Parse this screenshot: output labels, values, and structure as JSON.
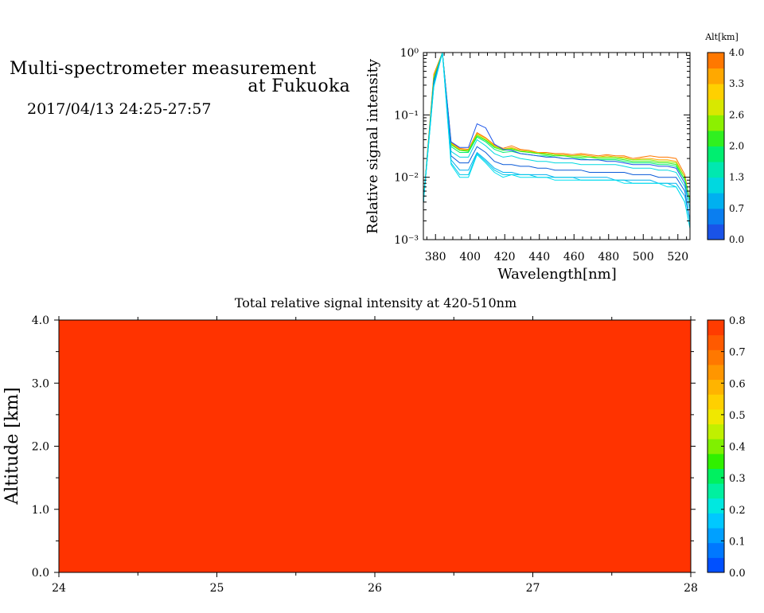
{
  "header": {
    "title_line1": "Multi-spectrometer measurement",
    "title_line2": "at Fukuoka",
    "timestamp": "2017/04/13 24:25-27:57"
  },
  "colors": {
    "fill_red": "#ff3300",
    "altitude_palette": [
      "#1a53e8",
      "#0a7ef0",
      "#00b0f0",
      "#00d8e0",
      "#00e8b0",
      "#00ee70",
      "#30f020",
      "#8cf000",
      "#d8e800",
      "#ffd000",
      "#ffa800",
      "#ff7800"
    ],
    "intensity_palette": [
      "#0050ff",
      "#0078ff",
      "#00a0ff",
      "#00c8ff",
      "#00e8e0",
      "#00f0a0",
      "#00f060",
      "#30f000",
      "#80f000",
      "#c0f000",
      "#f0e800",
      "#ffd000",
      "#ffb400",
      "#ff9600",
      "#ff7800",
      "#ff5a00",
      "#ff3c00"
    ]
  },
  "chart_data": [
    {
      "type": "line",
      "xlabel": "Wavelength[nm]",
      "ylabel": "Relative signal intensity",
      "yscale": "log",
      "xlim": [
        373,
        527
      ],
      "ylim": [
        0.001,
        1
      ],
      "x_ticks": [
        380,
        400,
        420,
        440,
        460,
        480,
        500,
        520
      ],
      "y_ticks": [
        {
          "value": 1,
          "label": "10⁰"
        },
        {
          "value": 0.1,
          "label": "10⁻¹"
        },
        {
          "value": 0.01,
          "label": "10⁻²"
        },
        {
          "value": 0.001,
          "label": "10⁻³"
        }
      ],
      "x": [
        373,
        379,
        384,
        389,
        394,
        399,
        404,
        409,
        414,
        419,
        424,
        429,
        434,
        439,
        444,
        449,
        454,
        459,
        464,
        469,
        474,
        479,
        484,
        489,
        494,
        499,
        504,
        509,
        514,
        519,
        524,
        527
      ],
      "series": [
        {
          "color": "#ff7800",
          "values": [
            0.004,
            0.45,
            1,
            0.036,
            0.029,
            0.028,
            0.052,
            0.043,
            0.033,
            0.029,
            0.032,
            0.028,
            0.027,
            0.025,
            0.025,
            0.024,
            0.024,
            0.023,
            0.024,
            0.023,
            0.022,
            0.023,
            0.022,
            0.022,
            0.02,
            0.021,
            0.022,
            0.021,
            0.021,
            0.02,
            0.011,
            0.004
          ]
        },
        {
          "color": "#ffa800",
          "values": [
            0.004,
            0.42,
            1,
            0.035,
            0.028,
            0.027,
            0.05,
            0.042,
            0.032,
            0.028,
            0.03,
            0.027,
            0.026,
            0.025,
            0.024,
            0.023,
            0.023,
            0.022,
            0.023,
            0.022,
            0.021,
            0.022,
            0.021,
            0.021,
            0.019,
            0.02,
            0.02,
            0.019,
            0.019,
            0.018,
            0.01,
            0.004
          ]
        },
        {
          "color": "#8cf000",
          "values": [
            0.004,
            0.4,
            1,
            0.034,
            0.027,
            0.027,
            0.048,
            0.04,
            0.031,
            0.028,
            0.029,
            0.026,
            0.026,
            0.024,
            0.024,
            0.023,
            0.022,
            0.022,
            0.022,
            0.021,
            0.021,
            0.021,
            0.021,
            0.02,
            0.019,
            0.019,
            0.019,
            0.018,
            0.018,
            0.017,
            0.01,
            0.004
          ]
        },
        {
          "color": "#30f020",
          "values": [
            0.004,
            0.38,
            1,
            0.033,
            0.027,
            0.026,
            0.046,
            0.039,
            0.03,
            0.027,
            0.028,
            0.026,
            0.025,
            0.024,
            0.023,
            0.022,
            0.022,
            0.021,
            0.021,
            0.021,
            0.02,
            0.02,
            0.02,
            0.019,
            0.018,
            0.018,
            0.018,
            0.017,
            0.017,
            0.016,
            0.009,
            0.004
          ]
        },
        {
          "color": "#00ee70",
          "values": [
            0.004,
            0.36,
            1,
            0.031,
            0.025,
            0.025,
            0.044,
            0.037,
            0.028,
            0.025,
            0.026,
            0.024,
            0.023,
            0.022,
            0.022,
            0.021,
            0.02,
            0.02,
            0.02,
            0.019,
            0.019,
            0.019,
            0.019,
            0.018,
            0.017,
            0.017,
            0.017,
            0.016,
            0.016,
            0.015,
            0.009,
            0.004
          ]
        },
        {
          "color": "#1a53e8",
          "values": [
            0.004,
            0.35,
            1,
            0.037,
            0.03,
            0.03,
            0.072,
            0.062,
            0.034,
            0.028,
            0.027,
            0.024,
            0.023,
            0.022,
            0.021,
            0.021,
            0.02,
            0.02,
            0.019,
            0.019,
            0.019,
            0.018,
            0.018,
            0.017,
            0.016,
            0.016,
            0.016,
            0.015,
            0.015,
            0.014,
            0.008,
            0.003
          ]
        },
        {
          "color": "#00d8e0",
          "values": [
            0.004,
            0.33,
            1,
            0.026,
            0.021,
            0.021,
            0.04,
            0.032,
            0.024,
            0.021,
            0.022,
            0.02,
            0.019,
            0.018,
            0.018,
            0.017,
            0.017,
            0.017,
            0.016,
            0.016,
            0.016,
            0.016,
            0.016,
            0.015,
            0.014,
            0.014,
            0.014,
            0.013,
            0.013,
            0.012,
            0.007,
            0.003
          ]
        },
        {
          "color": "#0a5ad8",
          "values": [
            0.004,
            0.32,
            1,
            0.022,
            0.017,
            0.017,
            0.031,
            0.025,
            0.018,
            0.016,
            0.016,
            0.015,
            0.015,
            0.014,
            0.014,
            0.013,
            0.013,
            0.013,
            0.013,
            0.012,
            0.012,
            0.012,
            0.012,
            0.012,
            0.011,
            0.011,
            0.011,
            0.01,
            0.01,
            0.01,
            0.006,
            0.002
          ]
        },
        {
          "color": "#00b0f0",
          "values": [
            0.004,
            0.3,
            1,
            0.019,
            0.013,
            0.013,
            0.025,
            0.019,
            0.014,
            0.012,
            0.012,
            0.011,
            0.011,
            0.011,
            0.011,
            0.01,
            0.01,
            0.01,
            0.01,
            0.01,
            0.01,
            0.01,
            0.009,
            0.009,
            0.009,
            0.009,
            0.009,
            0.008,
            0.008,
            0.008,
            0.005,
            0.002
          ]
        },
        {
          "color": "#00c8e8",
          "values": [
            0.004,
            0.29,
            1,
            0.017,
            0.011,
            0.011,
            0.024,
            0.018,
            0.013,
            0.011,
            0.011,
            0.011,
            0.011,
            0.01,
            0.01,
            0.01,
            0.01,
            0.01,
            0.009,
            0.009,
            0.009,
            0.009,
            0.009,
            0.009,
            0.008,
            0.008,
            0.008,
            0.008,
            0.008,
            0.007,
            0.004,
            0.0016
          ]
        },
        {
          "color": "#00e0f0",
          "values": [
            0.004,
            0.28,
            1,
            0.016,
            0.01,
            0.01,
            0.023,
            0.017,
            0.012,
            0.01,
            0.011,
            0.01,
            0.01,
            0.01,
            0.01,
            0.009,
            0.009,
            0.009,
            0.009,
            0.009,
            0.009,
            0.009,
            0.009,
            0.008,
            0.008,
            0.008,
            0.008,
            0.008,
            0.007,
            0.007,
            0.004,
            0.0015
          ]
        }
      ],
      "colorbar": {
        "title": "Alt[km]",
        "min": 0.0,
        "max": 4.0,
        "labels": [
          "0.0",
          "0.7",
          "1.3",
          "2.0",
          "2.6",
          "3.3",
          "4.0"
        ]
      }
    },
    {
      "type": "heatmap",
      "title": "Total relative signal intensity at 420-510nm",
      "ylabel": "Altitude [km]",
      "xlim": [
        24,
        28
      ],
      "ylim": [
        0,
        4
      ],
      "x_tick_labels": [
        "24",
        "25",
        "26",
        "27",
        "28"
      ],
      "y_tick_labels": [
        "0.0",
        "1.0",
        "2.0",
        "3.0",
        "4.0"
      ],
      "value_everywhere": 0.8,
      "colorbar": {
        "min": 0.0,
        "max": 0.8,
        "labels": [
          "0.0",
          "0.1",
          "0.2",
          "0.3",
          "0.4",
          "0.5",
          "0.6",
          "0.7",
          "0.8"
        ]
      }
    }
  ]
}
